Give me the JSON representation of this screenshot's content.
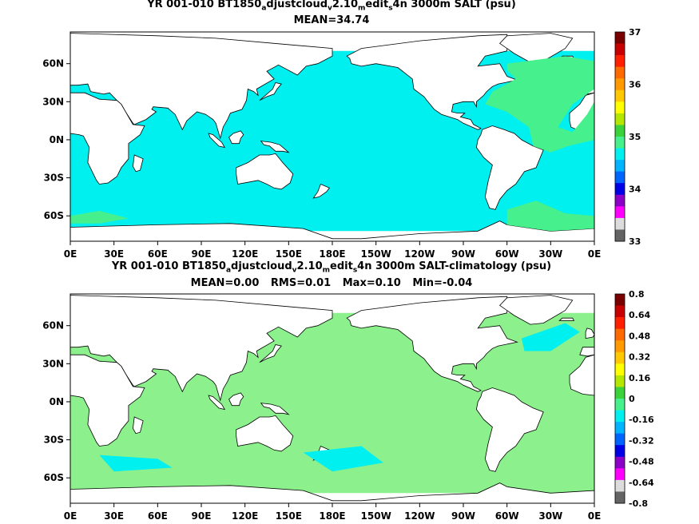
{
  "panels": [
    {
      "title": {
        "pre": "YR 001-010 BT1850",
        "s1": "a",
        "m1": "djustcloud",
        "s2": "v",
        "m2": "2.10",
        "s3": "m",
        "m3": "edit",
        "s4": "s",
        "post": "4n 3000m SALT (psu)"
      },
      "stats": [
        "MEAN=34.74"
      ],
      "lat_labels": [
        "60N",
        "30N",
        "0N",
        "30S",
        "60S"
      ],
      "lon_labels": [
        "0E",
        "30E",
        "60E",
        "90E",
        "120E",
        "150E",
        "180E",
        "150W",
        "120W",
        "90W",
        "60W",
        "30W",
        "0E"
      ],
      "colorbar": {
        "labels": [
          "37",
          "36",
          "35",
          "34",
          "33"
        ],
        "colors": [
          "#7a0000",
          "#c80000",
          "#ff2000",
          "#ff6a00",
          "#ff9a00",
          "#ffc800",
          "#ffff00",
          "#b4e600",
          "#3cd23c",
          "#46f08c",
          "#00f0f0",
          "#00b4ff",
          "#0064ff",
          "#0000e6",
          "#8c00c8",
          "#ff00ff",
          "#dcdcdc",
          "#646464"
        ],
        "ocean_color": "#00f0f0",
        "secondary_color": "#46f08c"
      }
    },
    {
      "title": {
        "pre": "YR 001-010 BT1850",
        "s1": "a",
        "m1": "djustcloud",
        "s2": "v",
        "m2": "2.10",
        "s3": "m",
        "m3": "edit",
        "s4": "s",
        "post": "4n 3000m SALT-climatology (psu)"
      },
      "stats": [
        "MEAN=0.00",
        "RMS=0.01",
        "Max=0.10",
        "Min=-0.04"
      ],
      "lat_labels": [
        "60N",
        "30N",
        "0N",
        "30S",
        "60S"
      ],
      "lon_labels": [
        "0E",
        "30E",
        "60E",
        "90E",
        "120E",
        "150E",
        "180E",
        "150W",
        "120W",
        "90W",
        "60W",
        "30W",
        "0E"
      ],
      "colorbar": {
        "labels": [
          "0.8",
          "0.64",
          "0.48",
          "0.32",
          "0.16",
          "0",
          "-0.16",
          "-0.32",
          "-0.48",
          "-0.64",
          "-0.8"
        ],
        "colors": [
          "#7a0000",
          "#c80000",
          "#ff2000",
          "#ff6a00",
          "#ff9a00",
          "#ffc800",
          "#ffff00",
          "#b4e600",
          "#3cd23c",
          "#46f08c",
          "#00f0f0",
          "#00b4ff",
          "#0064ff",
          "#0000e6",
          "#8c00c8",
          "#ff00ff",
          "#dcdcdc",
          "#646464"
        ],
        "ocean_color": "#8cf08c",
        "secondary_color": "#00f0f0"
      }
    }
  ]
}
